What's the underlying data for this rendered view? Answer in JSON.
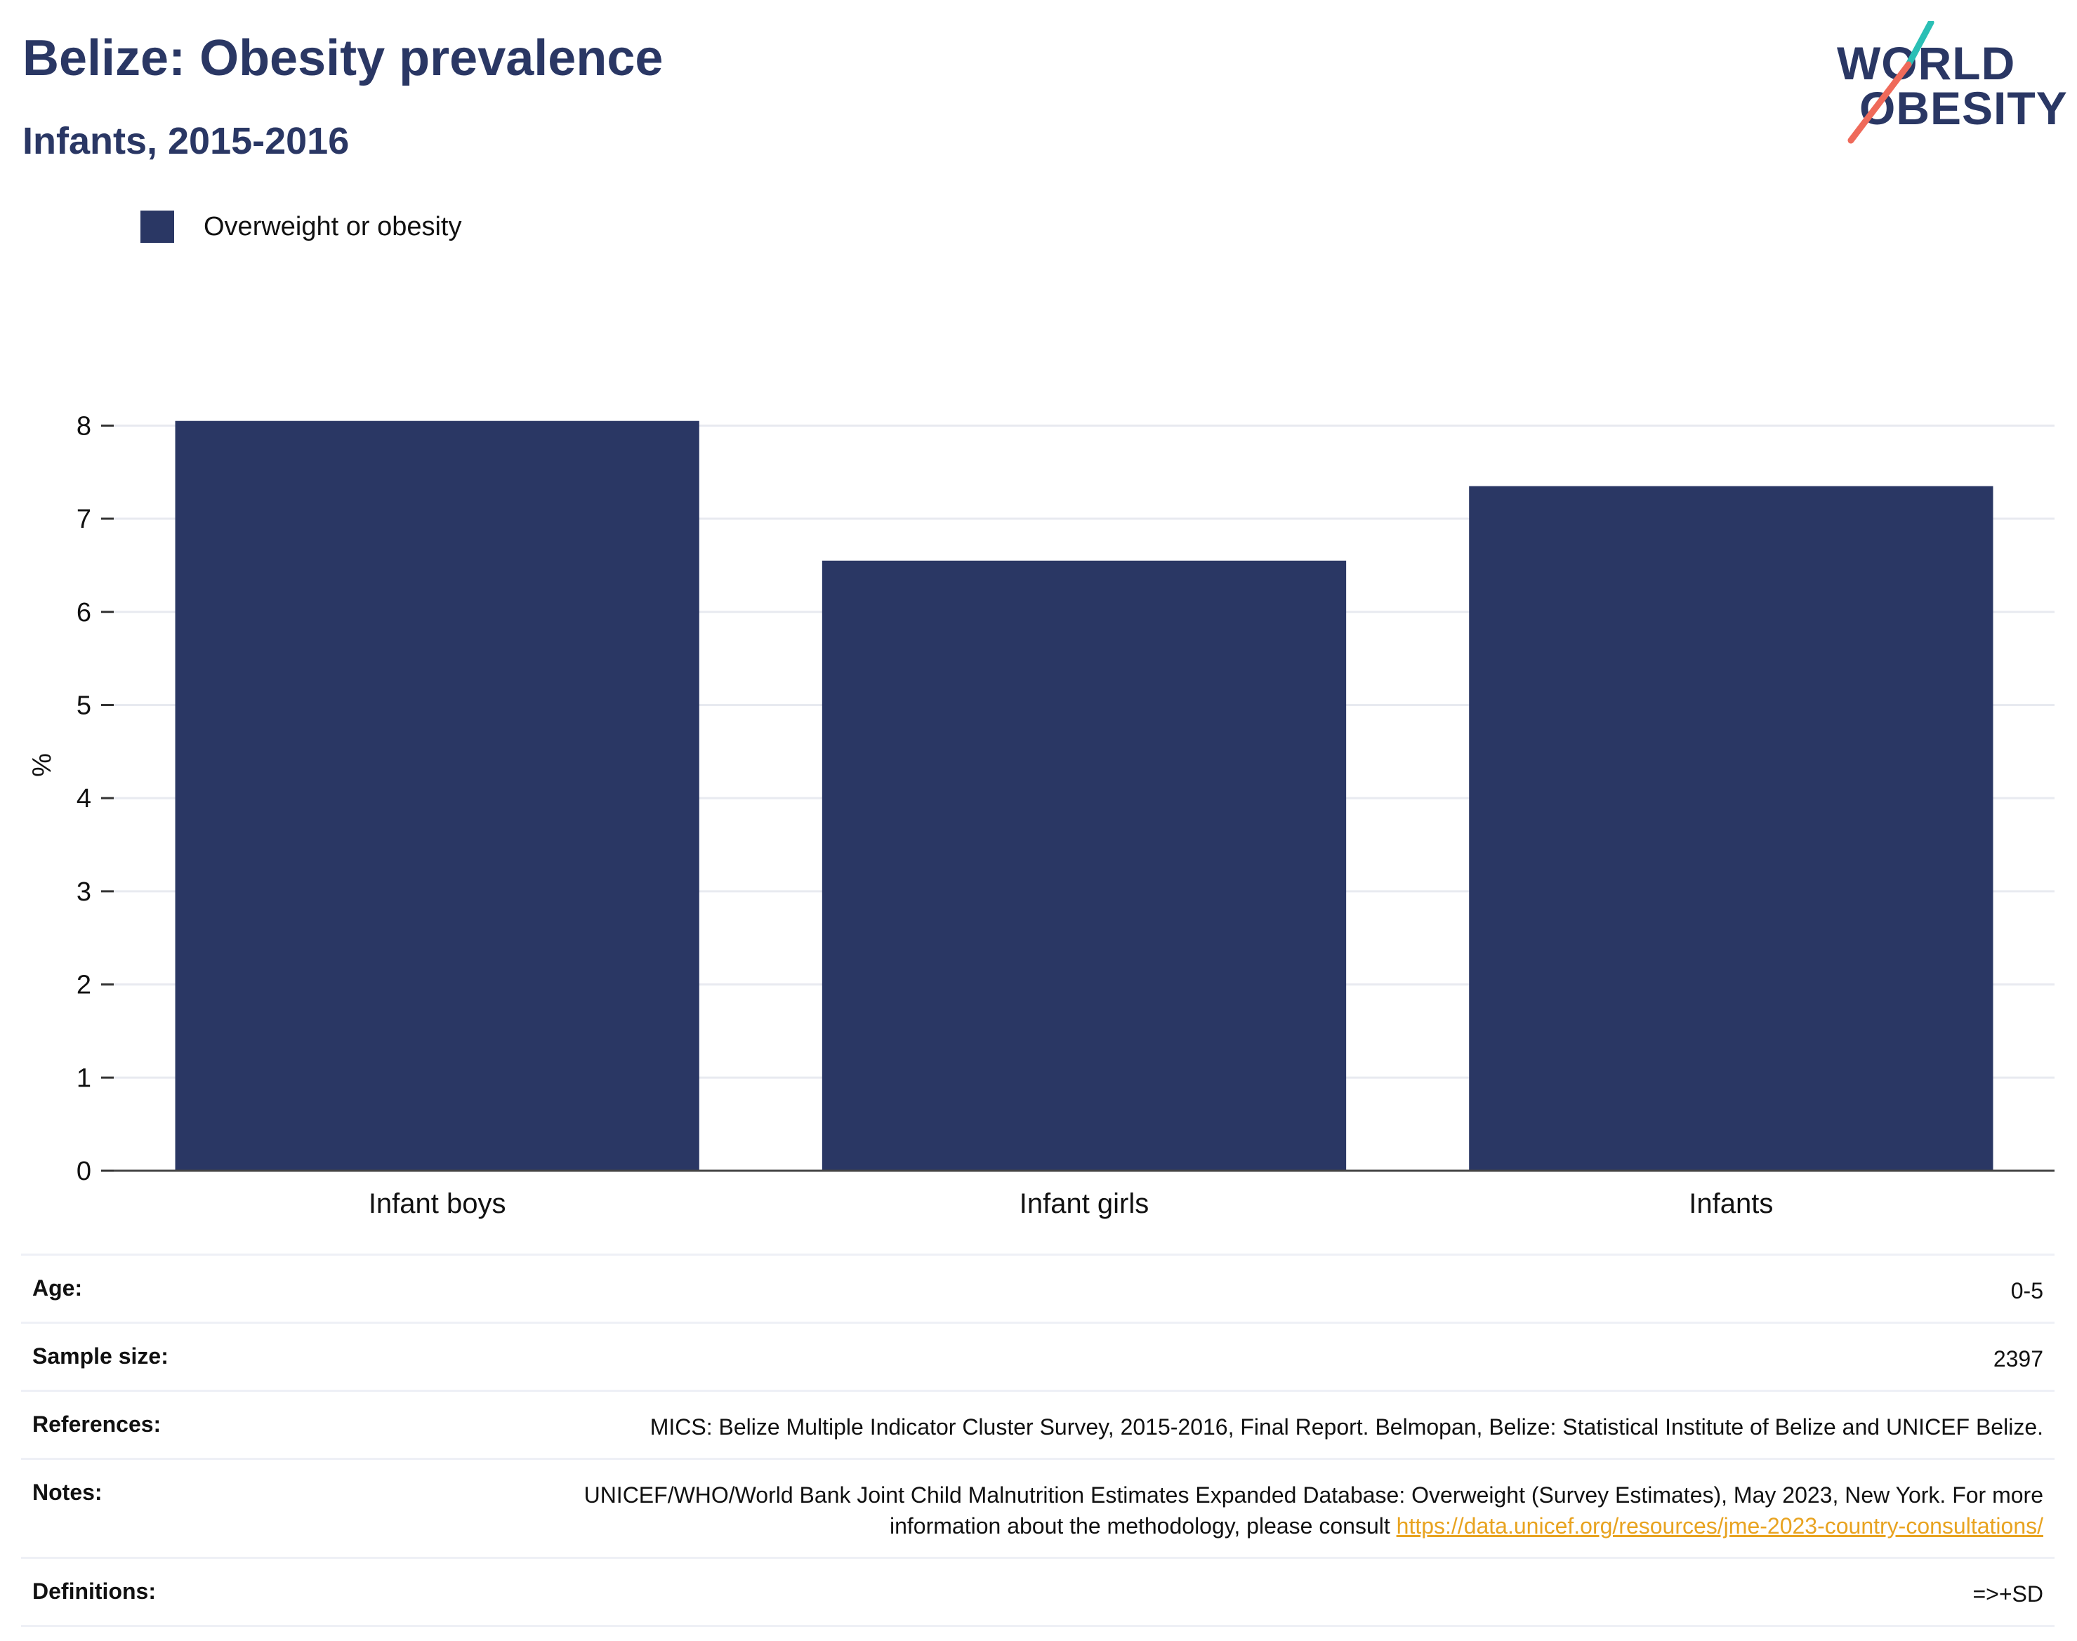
{
  "header": {
    "title": "Belize: Obesity prevalence",
    "subtitle": "Infants, 2015-2016"
  },
  "logo": {
    "line1": "WORLD",
    "line2": "OBESITY"
  },
  "colors": {
    "bar": "#2a3764",
    "title": "#2a3764",
    "link": "#e8a320",
    "logo_teal": "#2bbfb5",
    "logo_coral": "#ef6a5a"
  },
  "chart_data": {
    "type": "bar",
    "title": "Belize: Obesity prevalence",
    "subtitle": "Infants, 2015-2016",
    "categories": [
      "Infant boys",
      "Infant girls",
      "Infants"
    ],
    "series": [
      {
        "name": "Overweight or obesity",
        "values": [
          8.05,
          6.55,
          7.35
        ]
      }
    ],
    "ylabel": "%",
    "xlabel": "",
    "ylim": [
      0,
      8.5
    ],
    "yticks": [
      0,
      1,
      2,
      3,
      4,
      5,
      6,
      7,
      8
    ],
    "grid": true,
    "legend": "top-left"
  },
  "info": {
    "age_label": "Age:",
    "age_value": "0-5",
    "sample_label": "Sample size:",
    "sample_value": "2397",
    "references_label": "References:",
    "references_value": "MICS: Belize Multiple Indicator Cluster Survey, 2015-2016, Final Report. Belmopan, Belize: Statistical Institute of Belize and UNICEF Belize.",
    "notes_label": "Notes:",
    "notes_value": "UNICEF/WHO/World Bank Joint Child Malnutrition Estimates Expanded Database: Overweight (Survey Estimates), May 2023, New York. For more information about the methodology, please consult",
    "notes_link": "https://data.unicef.org/resources/jme-2023-country-consultations/",
    "definitions_label": "Definitions:",
    "definitions_value": "=>+SD"
  }
}
